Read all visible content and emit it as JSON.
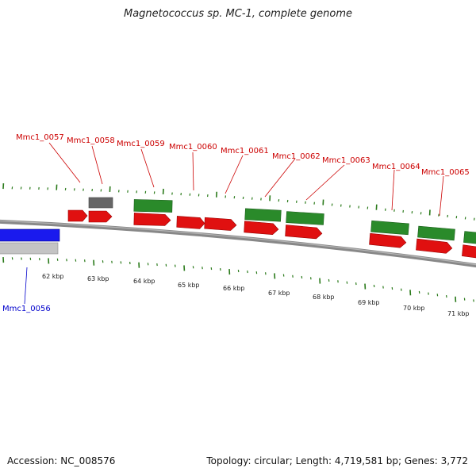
{
  "title": "Magnetococcus sp. MC-1, complete genome",
  "footer": {
    "accession": "Accession: NC_008576",
    "summary": "Topology: circular; Length: 4,719,581 bp; Genes: 3,772"
  },
  "colors": {
    "forward_cds": "#e01010",
    "reverse_cds": "#2a8a2a",
    "hypothetical": "#666666",
    "highlight": "#1a1aee",
    "backbone": "#777777",
    "label_red": "#cc0000",
    "label_blue": "#0000cc",
    "ticks": "#2a7a1a"
  },
  "scale_labels": [
    "62 kbp",
    "63 kbp",
    "64 kbp",
    "65 kbp",
    "66 kbp",
    "67 kbp",
    "68 kbp",
    "69 kbp",
    "70 kbp",
    "71 kbp"
  ],
  "gene_labels": [
    {
      "name": "Mmc1_0057",
      "color": "label_red"
    },
    {
      "name": "Mmc1_0058",
      "color": "label_red"
    },
    {
      "name": "Mmc1_0059",
      "color": "label_red"
    },
    {
      "name": "Mmc1_0060",
      "color": "label_red"
    },
    {
      "name": "Mmc1_0061",
      "color": "label_red"
    },
    {
      "name": "Mmc1_0062",
      "color": "label_red"
    },
    {
      "name": "Mmc1_0063",
      "color": "label_red"
    },
    {
      "name": "Mmc1_0064",
      "color": "label_red"
    },
    {
      "name": "Mmc1_0065",
      "color": "label_red"
    },
    {
      "name": "Mmc1_0056",
      "color": "label_blue"
    }
  ]
}
